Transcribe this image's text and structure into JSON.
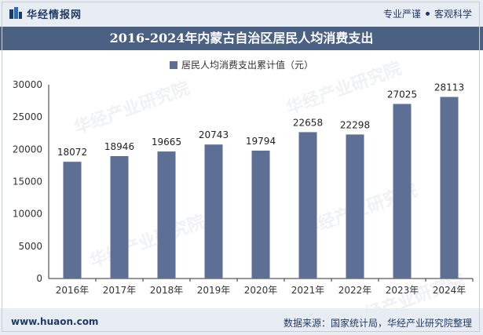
{
  "header": {
    "brand_name": "华经情报网",
    "slogan_left": "专业严谨",
    "slogan_right": "客观科学"
  },
  "title": "2016-2024年内蒙古自治区居民人均消费支出",
  "footer": {
    "site": "www.huaon.com",
    "source": "数据来源：国家统计局，华经产业研究院整理"
  },
  "watermark": {
    "cn": "华经产业研究院",
    "url": "www.huaon.com"
  },
  "colors": {
    "bar": "#5d6f94",
    "title_bg": "#4a6184",
    "header_bg": "#e8edf4"
  },
  "chart_data": {
    "type": "bar",
    "categories": [
      "2016年",
      "2017年",
      "2018年",
      "2019年",
      "2020年",
      "2021年",
      "2022年",
      "2023年",
      "2024年"
    ],
    "series": [
      {
        "name": "居民人均消费支出累计值（元）",
        "values": [
          18072,
          18946,
          19665,
          20743,
          19794,
          22658,
          22298,
          27025,
          28113
        ]
      }
    ],
    "ylim": [
      0,
      30000
    ],
    "yticks": [
      0,
      5000,
      10000,
      15000,
      20000,
      25000,
      30000
    ],
    "xlabel": "",
    "ylabel": "",
    "legend_position": "top",
    "grid": false,
    "data_labels": true
  }
}
